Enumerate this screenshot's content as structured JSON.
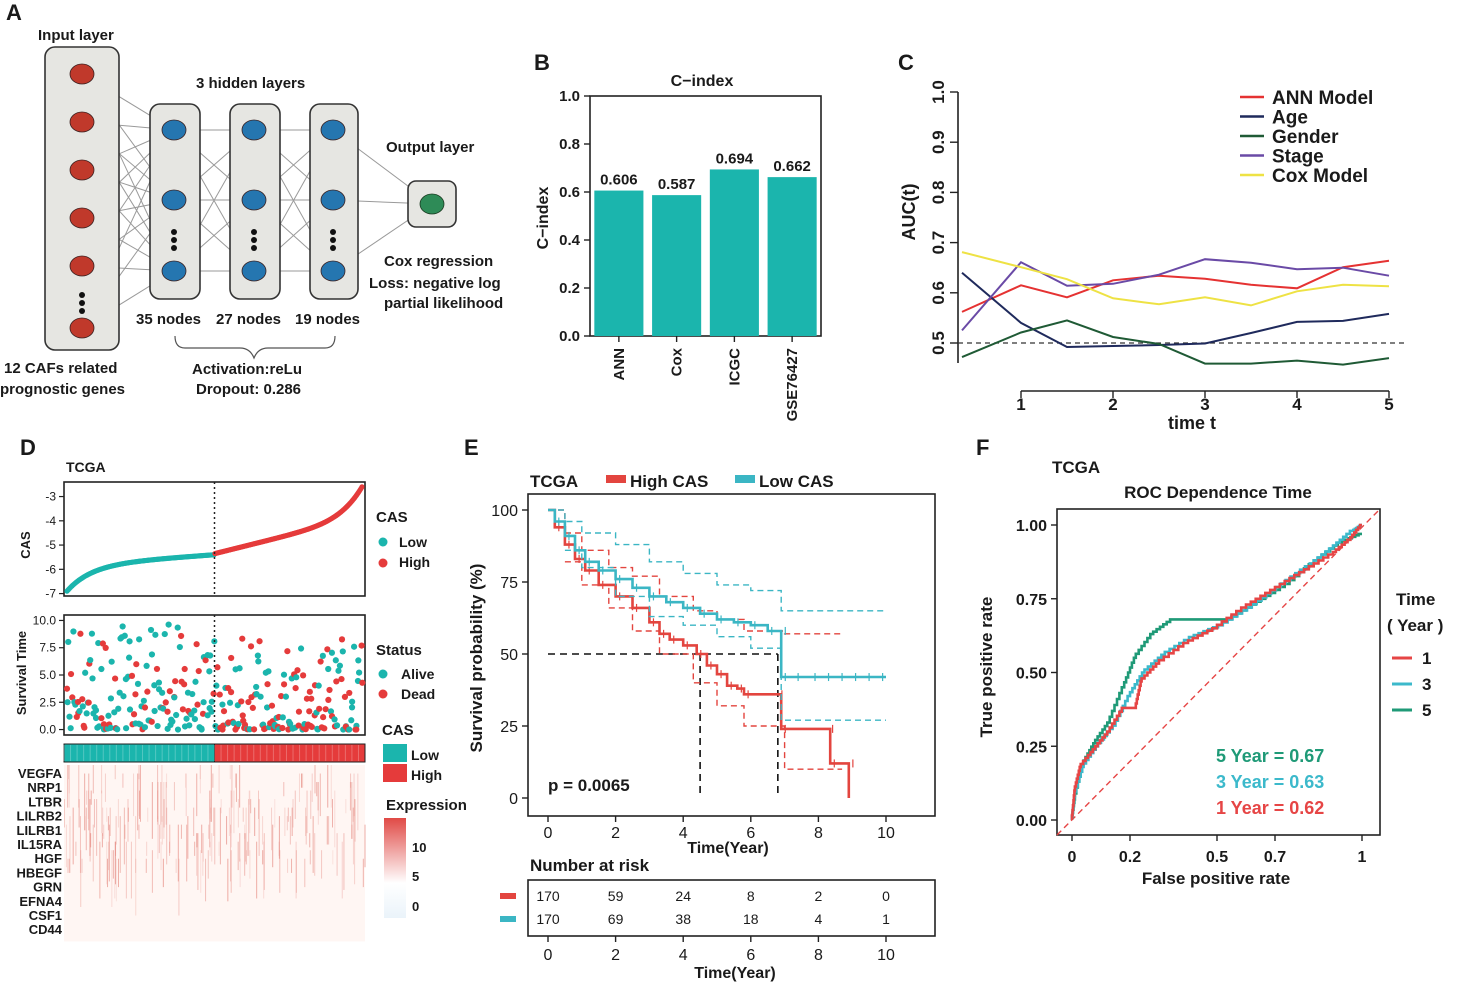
{
  "panels": {
    "a": {
      "letter": "A",
      "input_title": "Input layer",
      "hidden_title": "3 hidden layers",
      "output_title": "Output layer",
      "node_labels": [
        "35 nodes",
        "27 nodes",
        "19 nodes"
      ],
      "input_desc": [
        "12 CAFs related",
        "prognostic genes"
      ],
      "activation": "Activation:reLu",
      "dropout": "Dropout: 0.286",
      "cox": [
        "Cox regression",
        "Loss: negative log",
        "partial likelihood"
      ]
    },
    "b": {
      "letter": "B"
    },
    "c": {
      "letter": "C"
    },
    "d": {
      "letter": "D",
      "title": "TCGA",
      "cas_label": "CAS",
      "surv_label": "Survival Time",
      "legend_cas_title": "CAS",
      "legend_cas": [
        "Low",
        "High"
      ],
      "legend_status_title": "Status",
      "legend_status": [
        "Alive",
        "Dead"
      ],
      "legend_cas2_title": "CAS",
      "legend_cas2": [
        "Low",
        "High"
      ],
      "legend_expr_title": "Expression",
      "legend_expr_ticks": [
        "10",
        "5",
        "0"
      ],
      "genes": [
        "VEGFA",
        "NRP1",
        "LTBR",
        "LILRB2",
        "LILRB1",
        "IL15RA",
        "HGF",
        "HBEGF",
        "GRN",
        "EFNA4",
        "CSF1",
        "CD44"
      ]
    },
    "e": {
      "letter": "E",
      "title": "TCGA",
      "legend": [
        "High CAS",
        "Low CAS"
      ],
      "pvalue": "p = 0.0065",
      "risk_title": "Number at risk"
    },
    "f": {
      "letter": "F",
      "title": "TCGA"
    }
  },
  "colors": {
    "teal": "#1bb5ad",
    "red": "#e53b3b",
    "survival_teal": "#3bb6c4",
    "survival_red": "#e3453f",
    "roc_red": "#e64545",
    "roc_teal3": "#3cb9cb",
    "roc_green5": "#1f9a77"
  },
  "chart_data": [
    {
      "id": "b",
      "type": "bar",
      "title": "C−index",
      "ylabel": "C−index",
      "xlabel": "",
      "categories": [
        "ANN",
        "Cox",
        "ICGC",
        "GSE76427"
      ],
      "values": [
        0.606,
        0.587,
        0.694,
        0.662
      ],
      "value_labels": [
        "0.606",
        "0.587",
        "0.694",
        "0.662"
      ],
      "ylim": [
        0,
        1.0
      ],
      "yticks": [
        "0.0",
        "0.2",
        "0.4",
        "0.6",
        "0.8",
        "1.0"
      ],
      "color": "#1bb5ad"
    },
    {
      "id": "c",
      "type": "line",
      "title": "",
      "xlabel": "time t",
      "ylabel": "AUC(t)",
      "xlim": [
        0.5,
        5.1
      ],
      "ylim": [
        0.46,
        1.0
      ],
      "xticks": [
        "1",
        "2",
        "3",
        "4",
        "5"
      ],
      "yticks": [
        "0.5",
        "0.6",
        "0.7",
        "0.8",
        "0.9",
        "1.0"
      ],
      "reference_line": 0.5,
      "x": [
        0.5,
        1.0,
        1.5,
        2.0,
        2.5,
        3.0,
        3.5,
        4.0,
        4.5,
        5.0
      ],
      "series": [
        {
          "name": "ANN Model",
          "color": "#e53232",
          "values": [
            0.562,
            0.615,
            0.591,
            0.625,
            0.634,
            0.628,
            0.616,
            0.609,
            0.651,
            0.664
          ]
        },
        {
          "name": "Age",
          "color": "#1f2a5c",
          "values": [
            0.64,
            0.54,
            0.492,
            0.494,
            0.496,
            0.499,
            0.52,
            0.542,
            0.544,
            0.558
          ]
        },
        {
          "name": "Gender",
          "color": "#1f5a35",
          "values": [
            0.472,
            0.521,
            0.545,
            0.512,
            0.498,
            0.459,
            0.459,
            0.465,
            0.457,
            0.47
          ]
        },
        {
          "name": "Stage",
          "color": "#6a4aa6",
          "values": [
            0.525,
            0.661,
            0.614,
            0.618,
            0.636,
            0.667,
            0.66,
            0.647,
            0.65,
            0.634
          ]
        },
        {
          "name": "Cox Model",
          "color": "#eee244",
          "values": [
            0.681,
            0.651,
            0.627,
            0.589,
            0.577,
            0.591,
            0.575,
            0.603,
            0.616,
            0.613
          ]
        }
      ]
    },
    {
      "id": "d",
      "type": "scatter",
      "title": "TCGA",
      "cas_axis": {
        "ylabel": "CAS",
        "yticks": [
          "-3",
          "-4",
          "-5",
          "-6",
          "-7"
        ],
        "ylim": [
          -7.1,
          -2.4
        ]
      },
      "survival_axis": {
        "ylabel": "Survival Time",
        "yticks": [
          "10.0",
          "7.5",
          "5.0",
          "2.5",
          "0.0"
        ],
        "ylim": [
          -0.5,
          10.5
        ]
      },
      "n_patients": 340,
      "cutoff_index": 170,
      "cas_curve": {
        "start": -6.9,
        "low_end": -5.4,
        "high_start": -5.35,
        "end": -2.6
      },
      "genes": [
        "VEGFA",
        "NRP1",
        "LTBR",
        "LILRB2",
        "LILRB1",
        "IL15RA",
        "HGF",
        "HBEGF",
        "GRN",
        "EFNA4",
        "CSF1",
        "CD44"
      ],
      "expression_range": [
        0,
        13
      ]
    },
    {
      "id": "e",
      "type": "line",
      "title": "TCGA",
      "xlabel": "Time(Year)",
      "ylabel": "Survival probability (%)",
      "xlim": [
        0,
        10
      ],
      "ylim": [
        0,
        100
      ],
      "xticks": [
        "0",
        "2",
        "4",
        "6",
        "8",
        "10"
      ],
      "yticks": [
        "0",
        "25",
        "50",
        "75",
        "100"
      ],
      "pvalue": "p = 0.0065",
      "median_survival": {
        "High CAS": 4.5,
        "Low CAS": 6.8
      },
      "series": [
        {
          "name": "High CAS",
          "color": "#e3453f",
          "steps": [
            [
              0,
              100
            ],
            [
              0.2,
              94
            ],
            [
              0.5,
              88
            ],
            [
              0.8,
              83
            ],
            [
              1.1,
              79
            ],
            [
              1.5,
              74
            ],
            [
              2.0,
              70
            ],
            [
              2.5,
              66
            ],
            [
              3.0,
              61
            ],
            [
              3.3,
              57
            ],
            [
              3.6,
              55
            ],
            [
              4.0,
              53
            ],
            [
              4.4,
              50
            ],
            [
              4.7,
              46
            ],
            [
              5.0,
              43
            ],
            [
              5.3,
              39
            ],
            [
              5.6,
              38
            ],
            [
              5.8,
              36
            ],
            [
              6.8,
              36
            ],
            [
              6.9,
              24
            ],
            [
              8.3,
              24
            ],
            [
              8.35,
              12
            ],
            [
              8.9,
              12
            ],
            [
              8.9,
              0
            ]
          ],
          "ci_upper": [
            [
              0,
              100
            ],
            [
              0.5,
              92
            ],
            [
              1.0,
              86
            ],
            [
              1.8,
              80
            ],
            [
              2.5,
              77
            ],
            [
              3.3,
              70
            ],
            [
              4.3,
              65
            ],
            [
              5.0,
              62
            ],
            [
              5.8,
              58
            ],
            [
              6.8,
              58
            ],
            [
              7.0,
              57
            ],
            [
              8.7,
              57
            ]
          ],
          "ci_lower": [
            [
              0.5,
              82
            ],
            [
              1.0,
              74
            ],
            [
              1.8,
              66
            ],
            [
              2.5,
              58
            ],
            [
              3.3,
              50
            ],
            [
              4.3,
              40
            ],
            [
              5.0,
              32
            ],
            [
              5.8,
              25
            ],
            [
              6.8,
              25
            ],
            [
              7.0,
              10
            ],
            [
              8.7,
              10
            ]
          ]
        },
        {
          "name": "Low CAS",
          "color": "#3bb6c4",
          "steps": [
            [
              0,
              100
            ],
            [
              0.2,
              96
            ],
            [
              0.5,
              91
            ],
            [
              0.8,
              86
            ],
            [
              1.1,
              82
            ],
            [
              1.5,
              79
            ],
            [
              2.0,
              76
            ],
            [
              2.5,
              73
            ],
            [
              3.0,
              70
            ],
            [
              3.5,
              68
            ],
            [
              4.0,
              66
            ],
            [
              4.5,
              64
            ],
            [
              5.0,
              62
            ],
            [
              5.5,
              61
            ],
            [
              6.0,
              60
            ],
            [
              6.5,
              58
            ],
            [
              6.9,
              58
            ],
            [
              6.9,
              42
            ],
            [
              10,
              42
            ]
          ],
          "ci_upper": [
            [
              0,
              100
            ],
            [
              0.5,
              96
            ],
            [
              1.0,
              92
            ],
            [
              2.0,
              88
            ],
            [
              3.0,
              82
            ],
            [
              4.0,
              78
            ],
            [
              5.0,
              74
            ],
            [
              6.0,
              72
            ],
            [
              6.7,
              72
            ],
            [
              6.9,
              65
            ],
            [
              10,
              65
            ]
          ],
          "ci_lower": [
            [
              0.5,
              86
            ],
            [
              1.0,
              80
            ],
            [
              2.0,
              70
            ],
            [
              3.0,
              63
            ],
            [
              4.0,
              60
            ],
            [
              5.0,
              56
            ],
            [
              6.0,
              52
            ],
            [
              6.7,
              52
            ],
            [
              6.9,
              27
            ],
            [
              10,
              27
            ]
          ]
        }
      ],
      "risk_table": {
        "times": [
          "0",
          "2",
          "4",
          "6",
          "8",
          "10"
        ],
        "High CAS": [
          "170",
          "59",
          "24",
          "8",
          "2",
          "0"
        ],
        "Low CAS": [
          "170",
          "69",
          "38",
          "18",
          "4",
          "1"
        ]
      }
    },
    {
      "id": "f",
      "type": "line",
      "title": "ROC Dependence Time",
      "xlabel": "False positive rate",
      "ylabel": "True positive rate",
      "xlim": [
        0,
        1
      ],
      "ylim": [
        0,
        1
      ],
      "xticks": [
        "0",
        "0.2",
        "0.5",
        "0.7",
        "1"
      ],
      "yticks": [
        "0.00",
        "0.25",
        "0.50",
        "0.75",
        "1.00"
      ],
      "legend_title": [
        "Time",
        "( Year )"
      ],
      "series": [
        {
          "name": "1",
          "label": "1 Year  =  0.62",
          "auc": 0.62,
          "color": "#e64545",
          "points": [
            [
              0,
              0
            ],
            [
              0.01,
              0.1
            ],
            [
              0.03,
              0.18
            ],
            [
              0.08,
              0.24
            ],
            [
              0.13,
              0.3
            ],
            [
              0.18,
              0.38
            ],
            [
              0.22,
              0.38
            ],
            [
              0.24,
              0.47
            ],
            [
              0.3,
              0.53
            ],
            [
              0.4,
              0.6
            ],
            [
              0.5,
              0.65
            ],
            [
              0.6,
              0.72
            ],
            [
              0.7,
              0.78
            ],
            [
              0.8,
              0.84
            ],
            [
              0.9,
              0.9
            ],
            [
              0.96,
              0.95
            ],
            [
              1,
              1
            ]
          ]
        },
        {
          "name": "3",
          "label": "3 Year  =  0.63",
          "auc": 0.63,
          "color": "#3cb9cb",
          "points": [
            [
              0,
              0
            ],
            [
              0.01,
              0.08
            ],
            [
              0.04,
              0.18
            ],
            [
              0.09,
              0.25
            ],
            [
              0.15,
              0.32
            ],
            [
              0.2,
              0.42
            ],
            [
              0.25,
              0.5
            ],
            [
              0.32,
              0.56
            ],
            [
              0.42,
              0.62
            ],
            [
              0.52,
              0.66
            ],
            [
              0.62,
              0.72
            ],
            [
              0.72,
              0.79
            ],
            [
              0.82,
              0.86
            ],
            [
              0.9,
              0.92
            ],
            [
              0.97,
              0.98
            ],
            [
              1,
              1
            ]
          ]
        },
        {
          "name": "5",
          "label": "5 Year  =  0.67",
          "auc": 0.67,
          "color": "#1f9a77",
          "points": [
            [
              0,
              0
            ],
            [
              0.01,
              0.07
            ],
            [
              0.04,
              0.19
            ],
            [
              0.08,
              0.26
            ],
            [
              0.13,
              0.33
            ],
            [
              0.18,
              0.45
            ],
            [
              0.22,
              0.55
            ],
            [
              0.28,
              0.63
            ],
            [
              0.35,
              0.68
            ],
            [
              0.45,
              0.68
            ],
            [
              0.55,
              0.68
            ],
            [
              0.65,
              0.74
            ],
            [
              0.75,
              0.8
            ],
            [
              0.85,
              0.88
            ],
            [
              0.93,
              0.94
            ],
            [
              1,
              0.97
            ]
          ]
        }
      ]
    }
  ]
}
